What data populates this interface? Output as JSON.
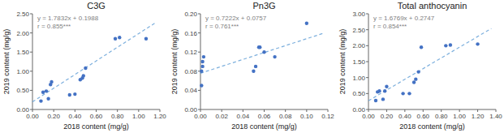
{
  "chart_data": [
    {
      "type": "scatter",
      "title": "C3G",
      "xlabel": "2018 content (mg/g)",
      "ylabel": "2019 content (mg/g)",
      "x": [
        0.08,
        0.1,
        0.13,
        0.15,
        0.17,
        0.18,
        0.35,
        0.4,
        0.45,
        0.47,
        0.48,
        0.5,
        0.78,
        0.82,
        1.07
      ],
      "values": [
        0.22,
        0.45,
        0.48,
        0.28,
        0.65,
        0.72,
        0.38,
        0.4,
        0.78,
        0.82,
        0.88,
        1.08,
        1.85,
        1.88,
        1.85
      ],
      "color": "#4472C4",
      "xlim": [
        0.0,
        1.2
      ],
      "ylim": [
        0.0,
        2.5
      ],
      "xticks": [
        {
          "value": 0.0,
          "label": "0.00"
        },
        {
          "value": 0.2,
          "label": "0.20"
        },
        {
          "value": 0.4,
          "label": "0.40"
        },
        {
          "value": 0.6,
          "label": "0.60"
        },
        {
          "value": 0.8,
          "label": "0.80"
        },
        {
          "value": 1.0,
          "label": "1.00"
        },
        {
          "value": 1.2,
          "label": "1.20"
        }
      ],
      "yticks": [
        {
          "value": 0.0,
          "label": "0.00"
        },
        {
          "value": 0.5,
          "label": "0.50"
        },
        {
          "value": 1.0,
          "label": "1.00"
        },
        {
          "value": 1.5,
          "label": "1.50"
        },
        {
          "value": 2.0,
          "label": "2.00"
        },
        {
          "value": 2.5,
          "label": "2.50"
        }
      ],
      "annotations": [
        "y = 1.7832x + 0.1988",
        "r = 0.855***"
      ],
      "trend_line": {
        "x": [
          0.0,
          1.15
        ],
        "values": [
          0.1988,
          2.24948
        ],
        "color": "#5B9BD5",
        "line_style": "dashed"
      }
    },
    {
      "type": "scatter",
      "title": "Pn3G",
      "xlabel": "2018 content (mg/g)",
      "ylabel": "2019 content (mg/g)",
      "x": [
        0.001,
        0.001,
        0.002,
        0.002,
        0.003,
        0.05,
        0.052,
        0.055,
        0.056,
        0.06,
        0.07,
        0.1
      ],
      "values": [
        0.05,
        0.08,
        0.09,
        0.1,
        0.11,
        0.08,
        0.09,
        0.13,
        0.13,
        0.12,
        0.11,
        0.18
      ],
      "color": "#4472C4",
      "xlim": [
        0.0,
        0.12
      ],
      "ylim": [
        0.0,
        0.2
      ],
      "xticks": [
        {
          "value": 0.0,
          "label": "0.00"
        },
        {
          "value": 0.02,
          "label": "0.02"
        },
        {
          "value": 0.04,
          "label": "0.04"
        },
        {
          "value": 0.06,
          "label": "0.06"
        },
        {
          "value": 0.08,
          "label": "0.08"
        },
        {
          "value": 0.1,
          "label": "0.10"
        },
        {
          "value": 0.12,
          "label": "0.12"
        }
      ],
      "yticks": [
        {
          "value": 0.0,
          "label": "0.00"
        },
        {
          "value": 0.04,
          "label": "0.04"
        },
        {
          "value": 0.08,
          "label": "0.08"
        },
        {
          "value": 0.12,
          "label": "0.12"
        },
        {
          "value": 0.16,
          "label": "0.16"
        },
        {
          "value": 0.2,
          "label": "0.20"
        }
      ],
      "annotations": [
        "y = 0.7222x + 0.0757",
        "r = 0.761***"
      ],
      "trend_line": {
        "x": [
          0.0,
          0.115
        ],
        "values": [
          0.0757,
          0.158753
        ],
        "color": "#5B9BD5",
        "line_style": "dashed"
      }
    },
    {
      "type": "scatter",
      "title": "Total anthocyanin",
      "xlabel": "2018 content (mg/g)",
      "ylabel": "2019 content (mg/g)",
      "x": [
        0.08,
        0.1,
        0.12,
        0.16,
        0.18,
        0.2,
        0.38,
        0.45,
        0.5,
        0.52,
        0.55,
        0.58,
        0.85,
        0.9,
        1.2
      ],
      "values": [
        0.28,
        0.55,
        0.58,
        0.32,
        0.58,
        0.72,
        0.5,
        0.5,
        0.85,
        0.95,
        1.18,
        1.95,
        2.0,
        2.02,
        2.05
      ],
      "color": "#4472C4",
      "xlim": [
        0.0,
        1.4
      ],
      "ylim": [
        0.0,
        3.0
      ],
      "xticks": [
        {
          "value": 0.0,
          "label": "0.00"
        },
        {
          "value": 0.2,
          "label": "0.20"
        },
        {
          "value": 0.4,
          "label": "0.40"
        },
        {
          "value": 0.6,
          "label": "0.60"
        },
        {
          "value": 0.8,
          "label": "0.80"
        },
        {
          "value": 1.0,
          "label": "1.00"
        },
        {
          "value": 1.2,
          "label": "1.20"
        },
        {
          "value": 1.4,
          "label": "1.40"
        }
      ],
      "yticks": [
        {
          "value": 0.0,
          "label": "0.00"
        },
        {
          "value": 0.5,
          "label": "0.50"
        },
        {
          "value": 1.0,
          "label": "1.00"
        },
        {
          "value": 1.5,
          "label": "1.50"
        },
        {
          "value": 2.0,
          "label": "2.00"
        },
        {
          "value": 2.5,
          "label": "2.50"
        },
        {
          "value": 3.0,
          "label": "3.00"
        }
      ],
      "annotations": [
        "y = 1.6769x + 0.2747",
        "r = 0.854***"
      ],
      "trend_line": {
        "x": [
          0.0,
          1.35
        ],
        "values": [
          0.2747,
          2.538515
        ],
        "color": "#5B9BD5",
        "line_style": "dashed"
      }
    }
  ]
}
